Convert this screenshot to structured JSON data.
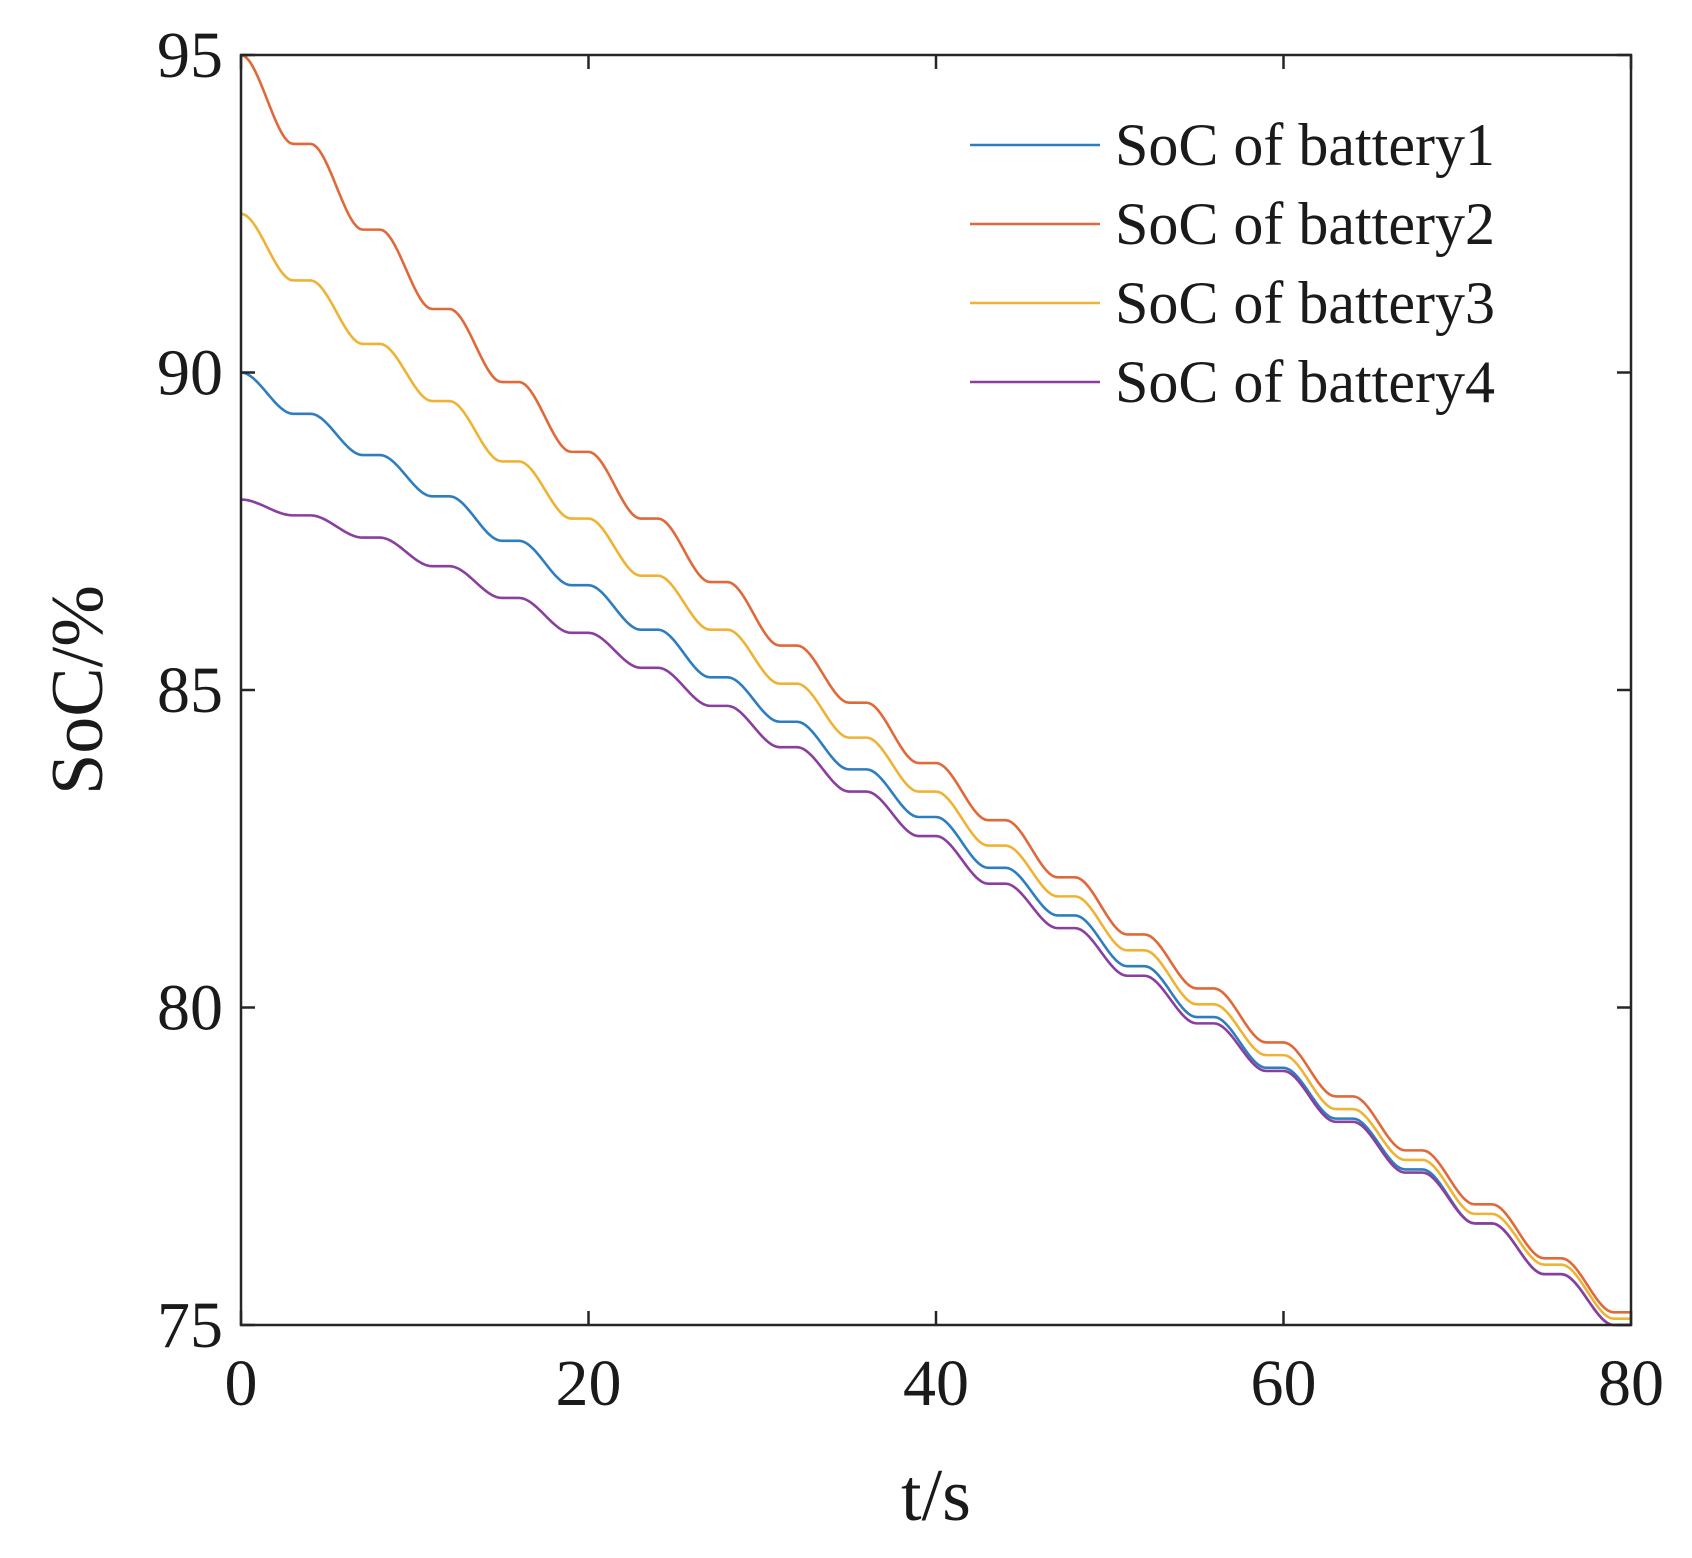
{
  "chart_data": {
    "type": "line",
    "title": "",
    "xlabel": "t/s",
    "ylabel": "SoC/%",
    "xlim": [
      0,
      80
    ],
    "ylim": [
      75,
      95
    ],
    "xticks": [
      0,
      20,
      40,
      60,
      80
    ],
    "yticks": [
      75,
      80,
      85,
      90,
      95
    ],
    "xtick_labels": [
      "0",
      "20",
      "40",
      "60",
      "80"
    ],
    "ytick_labels": [
      "75",
      "80",
      "85",
      "90",
      "95"
    ],
    "grid": false,
    "legend_position": "top-right",
    "step_period": 4,
    "series": [
      {
        "name": "SoC of battery1",
        "color": "#2e7ebf",
        "x": [
          0,
          4,
          8,
          12,
          16,
          20,
          24,
          28,
          32,
          36,
          40,
          44,
          48,
          52,
          56,
          60,
          64,
          68,
          72,
          76,
          80
        ],
        "values": [
          90.0,
          89.35,
          88.7,
          88.05,
          87.35,
          86.65,
          85.95,
          85.2,
          84.5,
          83.75,
          83.0,
          82.2,
          81.45,
          80.65,
          79.85,
          79.05,
          78.25,
          77.45,
          76.6,
          75.8,
          75.0
        ]
      },
      {
        "name": "SoC of battery2",
        "color": "#e0693a",
        "x": [
          0,
          4,
          8,
          12,
          16,
          20,
          24,
          28,
          32,
          36,
          40,
          44,
          48,
          52,
          56,
          60,
          64,
          68,
          72,
          76,
          80
        ],
        "values": [
          95.0,
          93.6,
          92.25,
          91.0,
          89.85,
          88.75,
          87.7,
          86.7,
          85.7,
          84.8,
          83.85,
          82.95,
          82.05,
          81.15,
          80.3,
          79.45,
          78.6,
          77.75,
          76.9,
          76.05,
          75.2
        ]
      },
      {
        "name": "SoC of battery3",
        "color": "#efb334",
        "x": [
          0,
          4,
          8,
          12,
          16,
          20,
          24,
          28,
          32,
          36,
          40,
          44,
          48,
          52,
          56,
          60,
          64,
          68,
          72,
          76,
          80
        ],
        "values": [
          92.5,
          91.45,
          90.45,
          89.55,
          88.6,
          87.7,
          86.8,
          85.95,
          85.1,
          84.25,
          83.4,
          82.55,
          81.75,
          80.9,
          80.05,
          79.25,
          78.4,
          77.6,
          76.75,
          75.95,
          75.1
        ]
      },
      {
        "name": "SoC of battery4",
        "color": "#8a3f9e",
        "x": [
          0,
          4,
          8,
          12,
          16,
          20,
          24,
          28,
          32,
          36,
          40,
          44,
          48,
          52,
          56,
          60,
          64,
          68,
          72,
          76,
          80
        ],
        "values": [
          88.0,
          87.75,
          87.4,
          86.95,
          86.45,
          85.9,
          85.35,
          84.75,
          84.1,
          83.4,
          82.7,
          81.95,
          81.25,
          80.5,
          79.75,
          79.0,
          78.2,
          77.4,
          76.6,
          75.8,
          75.0
        ]
      }
    ]
  }
}
